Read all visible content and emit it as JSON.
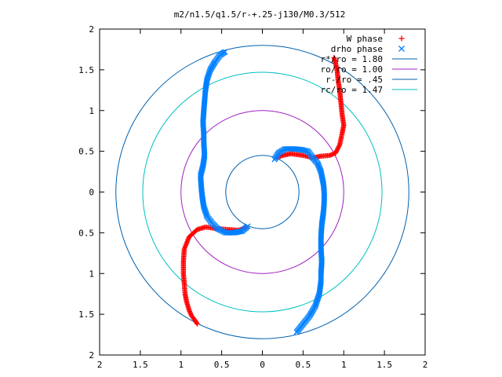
{
  "chart_data": {
    "type": "scatter",
    "title": "m2/n1.5/q1.5/r-+.25-j130/M0.3/512",
    "xlabel": "",
    "ylabel": "",
    "xlim": [
      -2,
      2
    ],
    "ylim": [
      -2,
      2
    ],
    "x_tick_values": [
      -2,
      -1.5,
      -1,
      -0.5,
      0,
      0.5,
      1,
      1.5,
      2
    ],
    "x_tick_labels": [
      "2",
      "1.5",
      "1",
      "0.5",
      "0",
      "0.5",
      "1",
      "1.5",
      "2"
    ],
    "y_tick_values": [
      2,
      1.5,
      1,
      0.5,
      0,
      -0.5,
      -1,
      -1.5,
      -2
    ],
    "y_tick_labels": [
      "2",
      "1.5",
      "1",
      "0.5",
      "0",
      "0.5",
      "1",
      "1.5",
      "2"
    ],
    "grid": false,
    "legend_position": "top-right",
    "series": [
      {
        "name": "W phase",
        "marker": "plus",
        "color": "#ff0000",
        "arms": [
          [
            [
              0.18,
              0.42
            ],
            [
              0.25,
              0.45
            ],
            [
              0.35,
              0.47
            ],
            [
              0.5,
              0.45
            ],
            [
              0.62,
              0.42
            ],
            [
              0.72,
              0.44
            ],
            [
              0.83,
              0.45
            ],
            [
              0.9,
              0.48
            ],
            [
              0.95,
              0.58
            ],
            [
              0.98,
              0.72
            ],
            [
              1.0,
              0.82
            ],
            [
              0.98,
              0.95
            ],
            [
              0.97,
              1.05
            ],
            [
              0.96,
              1.15
            ],
            [
              0.95,
              1.25
            ],
            [
              0.93,
              1.38
            ],
            [
              0.92,
              1.48
            ],
            [
              0.9,
              1.58
            ],
            [
              0.88,
              1.65
            ]
          ],
          [
            [
              -0.2,
              -0.44
            ],
            [
              -0.3,
              -0.47
            ],
            [
              -0.42,
              -0.46
            ],
            [
              -0.55,
              -0.45
            ],
            [
              -0.62,
              -0.44
            ],
            [
              -0.7,
              -0.43
            ],
            [
              -0.8,
              -0.46
            ],
            [
              -0.9,
              -0.55
            ],
            [
              -0.96,
              -0.7
            ],
            [
              -0.97,
              -0.85
            ],
            [
              -0.97,
              -1.0
            ],
            [
              -0.96,
              -1.12
            ],
            [
              -0.95,
              -1.25
            ],
            [
              -0.93,
              -1.35
            ],
            [
              -0.9,
              -1.45
            ],
            [
              -0.87,
              -1.52
            ],
            [
              -0.83,
              -1.57
            ],
            [
              -0.8,
              -1.62
            ]
          ]
        ]
      },
      {
        "name": "drho phase",
        "marker": "cross",
        "color": "#0080ff",
        "arms": [
          [
            [
              0.15,
              0.4
            ],
            [
              0.2,
              0.48
            ],
            [
              0.28,
              0.53
            ],
            [
              0.38,
              0.53
            ],
            [
              0.48,
              0.52
            ],
            [
              0.56,
              0.5
            ],
            [
              0.62,
              0.42
            ],
            [
              0.68,
              0.35
            ],
            [
              0.72,
              0.25
            ],
            [
              0.75,
              0.1
            ],
            [
              0.76,
              0.0
            ],
            [
              0.76,
              -0.12
            ],
            [
              0.75,
              -0.25
            ],
            [
              0.73,
              -0.4
            ],
            [
              0.72,
              -0.55
            ],
            [
              0.72,
              -0.7
            ],
            [
              0.73,
              -0.85
            ],
            [
              0.72,
              -1.0
            ],
            [
              0.72,
              -1.1
            ],
            [
              0.7,
              -1.25
            ],
            [
              0.65,
              -1.4
            ],
            [
              0.58,
              -1.52
            ],
            [
              0.5,
              -1.62
            ],
            [
              0.42,
              -1.72
            ]
          ],
          [
            [
              -0.18,
              -0.42
            ],
            [
              -0.25,
              -0.48
            ],
            [
              -0.35,
              -0.5
            ],
            [
              -0.45,
              -0.5
            ],
            [
              -0.55,
              -0.45
            ],
            [
              -0.62,
              -0.38
            ],
            [
              -0.68,
              -0.3
            ],
            [
              -0.72,
              -0.18
            ],
            [
              -0.74,
              -0.05
            ],
            [
              -0.75,
              0.05
            ],
            [
              -0.76,
              0.2
            ],
            [
              -0.73,
              0.32
            ],
            [
              -0.71,
              0.45
            ],
            [
              -0.72,
              0.6
            ],
            [
              -0.72,
              0.72
            ],
            [
              -0.73,
              0.85
            ],
            [
              -0.72,
              1.0
            ],
            [
              -0.71,
              1.12
            ],
            [
              -0.7,
              1.25
            ],
            [
              -0.68,
              1.38
            ],
            [
              -0.64,
              1.5
            ],
            [
              -0.58,
              1.6
            ],
            [
              -0.52,
              1.68
            ],
            [
              -0.46,
              1.72
            ]
          ]
        ]
      },
      {
        "name": "r*/ro = 1.80",
        "type": "circle",
        "radius": 1.8,
        "color": "#0060ad"
      },
      {
        "name": "ro/ro = 1.00",
        "type": "circle",
        "radius": 1.0,
        "color": "#a020c0"
      },
      {
        "name": "r-/ro = .45",
        "type": "circle",
        "radius": 0.45,
        "color": "#0060ad"
      },
      {
        "name": "rc/ro = 1.47",
        "type": "circle",
        "radius": 1.47,
        "color": "#00c0c0"
      }
    ]
  }
}
